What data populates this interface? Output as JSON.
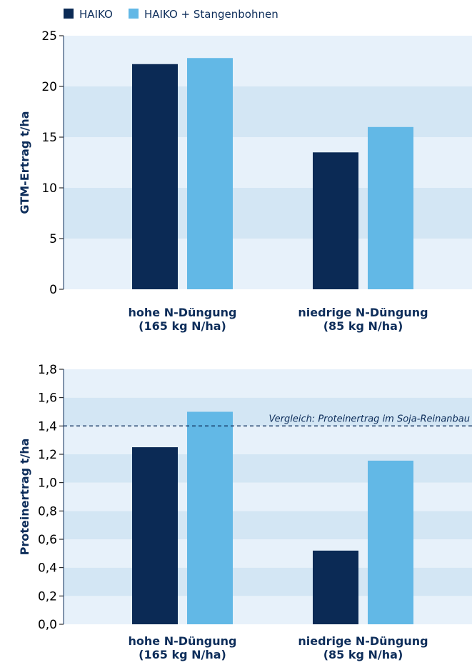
{
  "legend": [
    {
      "name": "HAIKO",
      "color": "#0b2a55"
    },
    {
      "name": "HAIKO + Stangenbohnen",
      "color": "#62b8e6"
    }
  ],
  "band_colors": [
    "#d3e6f4",
    "#e7f1fa"
  ],
  "chart_data": [
    {
      "type": "bar",
      "ylabel": "GTM-Ertrag t/ha",
      "ylim": [
        0,
        25
      ],
      "yticks": [
        "0",
        "5",
        "10",
        "15",
        "20",
        "25"
      ],
      "yticks_values": [
        0,
        5,
        10,
        15,
        20,
        25
      ],
      "categories": [
        [
          "hohe N-Düngung",
          "(165 kg N/ha)"
        ],
        [
          "niedrige N-Düngung",
          "(85 kg N/ha)"
        ]
      ],
      "series": [
        {
          "name": "HAIKO",
          "values": [
            22.2,
            13.5
          ]
        },
        {
          "name": "HAIKO + Stangenbohnen",
          "values": [
            22.8,
            16.0
          ]
        }
      ],
      "grid": "horizontal bands"
    },
    {
      "type": "bar",
      "ylabel": "Proteinertrag t/ha",
      "ylim": [
        0,
        1.8
      ],
      "yticks": [
        "0,0",
        "0,2",
        "0,4",
        "0,6",
        "0,8",
        "1,0",
        "1,2",
        "1,4",
        "1,6",
        "1,8"
      ],
      "yticks_values": [
        0,
        0.2,
        0.4,
        0.6,
        0.8,
        1.0,
        1.2,
        1.4,
        1.6,
        1.8
      ],
      "categories": [
        [
          "hohe N-Düngung",
          "(165 kg N/ha)"
        ],
        [
          "niedrige N-Düngung",
          "(85 kg N/ha)"
        ]
      ],
      "series": [
        {
          "name": "HAIKO",
          "values": [
            1.25,
            0.52
          ]
        },
        {
          "name": "HAIKO + Stangenbohnen",
          "values": [
            1.5,
            1.155
          ]
        }
      ],
      "reference_line": {
        "value": 1.4,
        "label": "Vergleich: Proteinertrag im Soja-Reinanbau"
      },
      "grid": "horizontal bands"
    }
  ]
}
